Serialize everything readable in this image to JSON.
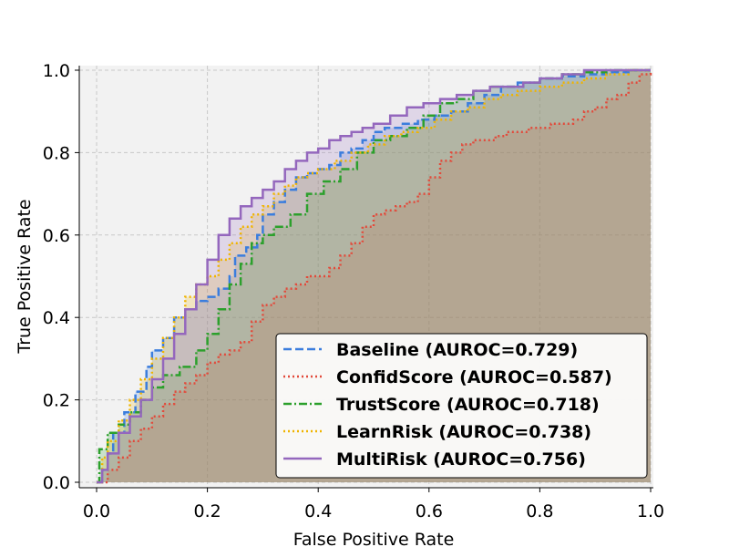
{
  "chart_data": {
    "type": "line",
    "title": "",
    "xlabel": "False Positive Rate",
    "ylabel": "True Positive Rate",
    "xlim": [
      0.0,
      1.0
    ],
    "ylim": [
      0.0,
      1.0
    ],
    "xticks": [
      "0.0",
      "0.2",
      "0.4",
      "0.6",
      "0.8",
      "1.0"
    ],
    "yticks": [
      "0.0",
      "0.2",
      "0.4",
      "0.6",
      "0.8",
      "1.0"
    ],
    "grid": true,
    "legend_position": "lower-right",
    "series": [
      {
        "name": "Baseline (AUROC=0.729)",
        "color": "#3b7ddd",
        "dash": "dashed",
        "x": [
          0,
          0.01,
          0.02,
          0.03,
          0.05,
          0.07,
          0.09,
          0.1,
          0.12,
          0.14,
          0.16,
          0.18,
          0.2,
          0.22,
          0.24,
          0.25,
          0.27,
          0.29,
          0.3,
          0.32,
          0.34,
          0.36,
          0.38,
          0.4,
          0.42,
          0.44,
          0.46,
          0.48,
          0.5,
          0.52,
          0.55,
          0.58,
          0.61,
          0.64,
          0.67,
          0.7,
          0.73,
          0.76,
          0.8,
          0.84,
          0.88,
          0.92,
          0.96,
          1.0
        ],
        "y": [
          0,
          0.03,
          0.07,
          0.12,
          0.17,
          0.22,
          0.28,
          0.32,
          0.35,
          0.4,
          0.42,
          0.44,
          0.45,
          0.47,
          0.5,
          0.55,
          0.57,
          0.6,
          0.65,
          0.68,
          0.71,
          0.74,
          0.75,
          0.76,
          0.77,
          0.8,
          0.81,
          0.83,
          0.85,
          0.86,
          0.87,
          0.88,
          0.89,
          0.9,
          0.92,
          0.94,
          0.96,
          0.97,
          0.98,
          0.985,
          0.99,
          0.995,
          1.0,
          1.0
        ]
      },
      {
        "name": "ConfidScore (AUROC=0.587)",
        "color": "#e24a3b",
        "dash": "dotted",
        "x": [
          0,
          0.02,
          0.04,
          0.06,
          0.08,
          0.1,
          0.12,
          0.14,
          0.16,
          0.18,
          0.2,
          0.22,
          0.24,
          0.26,
          0.28,
          0.3,
          0.32,
          0.34,
          0.36,
          0.38,
          0.4,
          0.42,
          0.44,
          0.46,
          0.48,
          0.5,
          0.52,
          0.54,
          0.56,
          0.58,
          0.6,
          0.62,
          0.64,
          0.66,
          0.68,
          0.7,
          0.72,
          0.74,
          0.76,
          0.78,
          0.8,
          0.82,
          0.84,
          0.86,
          0.88,
          0.9,
          0.92,
          0.94,
          0.96,
          0.98,
          1.0
        ],
        "y": [
          0,
          0.03,
          0.06,
          0.1,
          0.13,
          0.16,
          0.19,
          0.22,
          0.24,
          0.26,
          0.29,
          0.31,
          0.32,
          0.34,
          0.39,
          0.43,
          0.45,
          0.47,
          0.48,
          0.5,
          0.5,
          0.52,
          0.55,
          0.58,
          0.62,
          0.65,
          0.66,
          0.67,
          0.68,
          0.7,
          0.74,
          0.78,
          0.8,
          0.82,
          0.83,
          0.83,
          0.84,
          0.85,
          0.85,
          0.86,
          0.86,
          0.87,
          0.87,
          0.88,
          0.9,
          0.91,
          0.93,
          0.94,
          0.97,
          0.99,
          1.0
        ]
      },
      {
        "name": "TrustScore (AUROC=0.718)",
        "color": "#2ca02c",
        "dash": "dashdot",
        "x": [
          0,
          0.005,
          0.02,
          0.04,
          0.06,
          0.08,
          0.1,
          0.12,
          0.15,
          0.18,
          0.2,
          0.22,
          0.24,
          0.26,
          0.28,
          0.3,
          0.32,
          0.35,
          0.38,
          0.41,
          0.44,
          0.47,
          0.5,
          0.53,
          0.56,
          0.59,
          0.62,
          0.65,
          0.68,
          0.71,
          0.74,
          0.77,
          0.8,
          0.84,
          0.88,
          0.92,
          0.96,
          1.0
        ],
        "y": [
          0,
          0.08,
          0.12,
          0.14,
          0.17,
          0.2,
          0.23,
          0.26,
          0.28,
          0.32,
          0.36,
          0.42,
          0.48,
          0.53,
          0.58,
          0.6,
          0.62,
          0.65,
          0.7,
          0.73,
          0.76,
          0.8,
          0.83,
          0.84,
          0.86,
          0.89,
          0.92,
          0.93,
          0.95,
          0.96,
          0.96,
          0.97,
          0.98,
          0.99,
          0.995,
          1.0,
          1.0,
          1.0
        ]
      },
      {
        "name": "LearnRisk (AUROC=0.738)",
        "color": "#f0b400",
        "dash": "dotted",
        "x": [
          0,
          0.01,
          0.02,
          0.04,
          0.06,
          0.08,
          0.1,
          0.12,
          0.14,
          0.16,
          0.18,
          0.2,
          0.22,
          0.24,
          0.26,
          0.28,
          0.3,
          0.32,
          0.34,
          0.36,
          0.38,
          0.4,
          0.43,
          0.46,
          0.49,
          0.52,
          0.55,
          0.58,
          0.61,
          0.64,
          0.67,
          0.7,
          0.73,
          0.76,
          0.8,
          0.84,
          0.88,
          0.92,
          0.96,
          1.0
        ],
        "y": [
          0,
          0.06,
          0.1,
          0.15,
          0.2,
          0.25,
          0.3,
          0.35,
          0.4,
          0.45,
          0.48,
          0.5,
          0.54,
          0.58,
          0.62,
          0.65,
          0.67,
          0.7,
          0.72,
          0.74,
          0.75,
          0.76,
          0.78,
          0.8,
          0.82,
          0.84,
          0.85,
          0.86,
          0.88,
          0.9,
          0.91,
          0.93,
          0.94,
          0.95,
          0.96,
          0.97,
          0.98,
          0.99,
          1.0,
          1.0
        ]
      },
      {
        "name": "MultiRisk (AUROC=0.756)",
        "color": "#9467bd",
        "dash": "solid",
        "x": [
          0,
          0.01,
          0.02,
          0.04,
          0.06,
          0.08,
          0.1,
          0.12,
          0.14,
          0.16,
          0.18,
          0.2,
          0.22,
          0.24,
          0.26,
          0.28,
          0.3,
          0.32,
          0.34,
          0.36,
          0.38,
          0.4,
          0.42,
          0.44,
          0.46,
          0.48,
          0.5,
          0.53,
          0.56,
          0.59,
          0.62,
          0.65,
          0.68,
          0.71,
          0.74,
          0.77,
          0.8,
          0.84,
          0.88,
          0.92,
          0.96,
          1.0
        ],
        "y": [
          0,
          0.03,
          0.07,
          0.12,
          0.16,
          0.2,
          0.25,
          0.3,
          0.36,
          0.42,
          0.48,
          0.54,
          0.6,
          0.64,
          0.67,
          0.69,
          0.71,
          0.73,
          0.76,
          0.78,
          0.8,
          0.81,
          0.83,
          0.84,
          0.85,
          0.86,
          0.87,
          0.89,
          0.91,
          0.92,
          0.93,
          0.94,
          0.95,
          0.96,
          0.96,
          0.97,
          0.98,
          0.99,
          1.0,
          1.0,
          1.0,
          1.0
        ]
      }
    ]
  }
}
